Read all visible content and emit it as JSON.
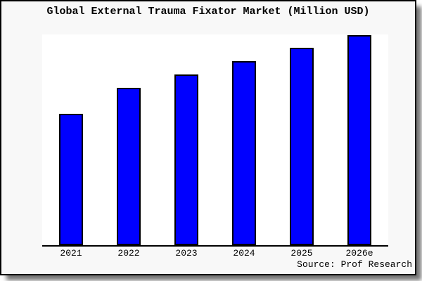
{
  "chart": {
    "title": "Global External Trauma Fixator Market (Million USD)",
    "source": "Source: Prof Research",
    "colors": {
      "bar_fill": "#0000ff",
      "bar_border": "#000000",
      "figure_background": "#f8f8f8",
      "plot_background": "#ffffff",
      "text": "#000000"
    }
  },
  "chart_data": {
    "type": "bar",
    "title": "Global External Trauma Fixator Market (Million USD)",
    "categories": [
      "2021",
      "2022",
      "2023",
      "2024",
      "2025",
      "2026e"
    ],
    "values": [
      187,
      224,
      243,
      262,
      281,
      299
    ],
    "value_units": "relative height (no y-axis labels or gridlines shown in chart)",
    "xlabel": "",
    "ylabel": "",
    "ylim": [
      0,
      300
    ],
    "grid": false,
    "legend": false,
    "source": "Source: Prof Research"
  }
}
